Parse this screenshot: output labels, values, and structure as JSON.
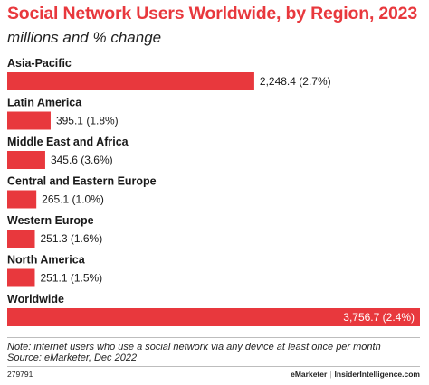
{
  "title": "Social Network Users Worldwide, by Region, 2023",
  "subtitle": "millions and % change",
  "notes": {
    "note": "Note: internet users who use a social network via any device at least once per month",
    "source": "Source: eMarketer, Dec 2022"
  },
  "footer": {
    "id": "279791",
    "brand": "eMarketer",
    "separator": "|",
    "site": "InsiderIntelligence.com"
  },
  "colors": {
    "accent": "#e8383d",
    "text": "#1a1a1a",
    "label_on_bar": "#ffffff"
  },
  "chart_data": {
    "type": "bar",
    "orientation": "horizontal",
    "title": "Social Network Users Worldwide, by Region, 2023",
    "subtitle": "millions and % change",
    "categories": [
      "Asia-Pacific",
      "Latin America",
      "Middle East and Africa",
      "Central and Eastern Europe",
      "Western Europe",
      "North America",
      "Worldwide"
    ],
    "values": [
      2248.4,
      395.1,
      345.6,
      265.1,
      251.3,
      251.1,
      3756.7
    ],
    "labels": [
      "2,248.4 (2.7%)",
      "395.1 (1.8%)",
      "345.6 (3.6%)",
      "265.1 (1.0%)",
      "251.3 (1.6%)",
      "251.1 (1.5%)",
      "3,756.7 (2.4%)"
    ],
    "xlim": [
      0,
      3756.7
    ],
    "grid": false,
    "legend": "none"
  }
}
